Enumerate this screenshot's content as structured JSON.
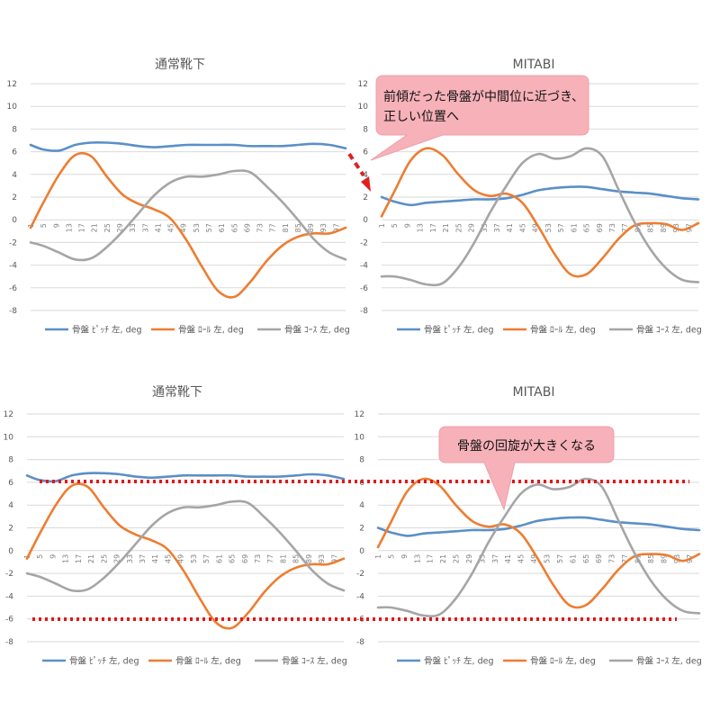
{
  "colors": {
    "pitch": "#5b8fc7",
    "roll": "#ed7d31",
    "yaw": "#a5a5a5",
    "callout_fill": "#f6b1b9",
    "callout_stroke": "#eea0aa",
    "arrow": "#e02020",
    "dotted": "#e01919"
  },
  "legend_labels": {
    "pitch": "骨盤 ﾋﾟｯﾁ 左, deg",
    "roll": "骨盤 ﾛｰﾙ 左, deg",
    "yaw": "骨盤 ｺｰｽ 左, deg"
  },
  "callouts": {
    "top": [
      "前傾だった骨盤が中間位に近づき、",
      "正しい位置へ"
    ],
    "bottom": [
      "骨盤の回旋が大きくなる"
    ]
  },
  "chart_data": [
    {
      "type": "line",
      "title": "通常靴下",
      "ylim": [
        -8,
        12
      ],
      "yticks": [
        "12",
        "10",
        "8",
        "6",
        "4",
        "2",
        "0",
        "-2",
        "-4",
        "-6",
        "-8"
      ],
      "categories": [
        "1",
        "5",
        "9",
        "13",
        "17",
        "21",
        "25",
        "29",
        "33",
        "37",
        "41",
        "45",
        "49",
        "53",
        "57",
        "61",
        "65",
        "69",
        "73",
        "77",
        "81",
        "85",
        "89",
        "93",
        "97"
      ],
      "x_range": [
        1,
        100
      ],
      "series": [
        {
          "name": "骨盤 ﾋﾟｯﾁ 左, deg",
          "key": "pitch",
          "x": [
            1,
            5,
            10,
            15,
            20,
            25,
            30,
            35,
            40,
            45,
            50,
            55,
            60,
            65,
            70,
            75,
            80,
            85,
            90,
            95,
            100
          ],
          "values": [
            6.6,
            6.2,
            6.1,
            6.6,
            6.8,
            6.8,
            6.7,
            6.5,
            6.4,
            6.5,
            6.6,
            6.6,
            6.6,
            6.6,
            6.5,
            6.5,
            6.5,
            6.6,
            6.7,
            6.6,
            6.3
          ]
        },
        {
          "name": "骨盤 ﾛｰﾙ 左, deg",
          "key": "roll",
          "x": [
            1,
            5,
            10,
            15,
            20,
            25,
            30,
            35,
            40,
            45,
            50,
            55,
            60,
            65,
            70,
            75,
            80,
            85,
            90,
            95,
            100
          ],
          "values": [
            -0.7,
            1.5,
            4.0,
            5.7,
            5.6,
            3.8,
            2.2,
            1.4,
            0.9,
            0.1,
            -1.8,
            -4.2,
            -6.3,
            -6.8,
            -5.5,
            -3.7,
            -2.3,
            -1.5,
            -1.2,
            -1.2,
            -0.7
          ]
        },
        {
          "name": "骨盤 ｺｰｽ 左, deg",
          "key": "yaw",
          "x": [
            1,
            5,
            10,
            15,
            20,
            25,
            30,
            35,
            40,
            45,
            50,
            55,
            60,
            65,
            70,
            75,
            80,
            85,
            90,
            95,
            100
          ],
          "values": [
            -2.0,
            -2.3,
            -2.9,
            -3.5,
            -3.4,
            -2.4,
            -1.0,
            0.6,
            2.2,
            3.3,
            3.8,
            3.8,
            4.0,
            4.3,
            4.2,
            3.0,
            1.6,
            0.0,
            -1.7,
            -2.9,
            -3.5
          ]
        }
      ]
    },
    {
      "type": "line",
      "title": "MITABI",
      "ylim": [
        -8,
        12
      ],
      "yticks": [
        "12",
        "10",
        "8",
        "6",
        "4",
        "2",
        "0",
        "-2",
        "-4",
        "-6",
        "-8"
      ],
      "categories": [
        "1",
        "5",
        "9",
        "13",
        "17",
        "21",
        "25",
        "29",
        "33",
        "37",
        "41",
        "45",
        "49",
        "53",
        "57",
        "61",
        "65",
        "69",
        "73",
        "77",
        "81",
        "85",
        "89",
        "93",
        "97"
      ],
      "x_range": [
        1,
        100
      ],
      "series": [
        {
          "name": "骨盤 ﾋﾟｯﾁ 左, deg",
          "key": "pitch",
          "x": [
            1,
            5,
            10,
            15,
            20,
            25,
            30,
            35,
            40,
            45,
            50,
            55,
            60,
            65,
            70,
            75,
            80,
            85,
            90,
            95,
            100
          ],
          "values": [
            2.0,
            1.6,
            1.3,
            1.5,
            1.6,
            1.7,
            1.8,
            1.8,
            1.9,
            2.2,
            2.6,
            2.8,
            2.9,
            2.9,
            2.7,
            2.5,
            2.4,
            2.3,
            2.1,
            1.9,
            1.8
          ]
        },
        {
          "name": "骨盤 ﾛｰﾙ 左, deg",
          "key": "roll",
          "x": [
            1,
            5,
            10,
            15,
            20,
            25,
            30,
            35,
            40,
            45,
            50,
            55,
            60,
            65,
            70,
            75,
            80,
            85,
            90,
            95,
            100
          ],
          "values": [
            0.3,
            2.5,
            5.2,
            6.3,
            5.7,
            4.0,
            2.6,
            2.1,
            2.3,
            1.5,
            -0.6,
            -3.0,
            -4.8,
            -4.8,
            -3.4,
            -1.7,
            -0.5,
            -0.3,
            -0.4,
            -0.9,
            -0.3
          ]
        },
        {
          "name": "骨盤 ｺｰｽ 左, deg",
          "key": "yaw",
          "x": [
            1,
            5,
            10,
            15,
            20,
            25,
            30,
            35,
            40,
            45,
            50,
            55,
            60,
            65,
            70,
            75,
            80,
            85,
            90,
            95,
            100
          ],
          "values": [
            -5.0,
            -5.0,
            -5.3,
            -5.7,
            -5.6,
            -4.2,
            -2.0,
            0.7,
            3.0,
            5.0,
            5.8,
            5.4,
            5.6,
            6.3,
            5.6,
            2.7,
            -0.2,
            -2.6,
            -4.3,
            -5.3,
            -5.5
          ]
        }
      ]
    },
    {
      "type": "line",
      "title": "通常靴下",
      "ylim": [
        -8,
        12
      ],
      "yticks": [
        "12",
        "10",
        "8",
        "6",
        "4",
        "2",
        "0",
        "-2",
        "-4",
        "-6",
        "-8"
      ],
      "categories": [
        "1",
        "5",
        "9",
        "13",
        "17",
        "21",
        "25",
        "29",
        "33",
        "37",
        "41",
        "45",
        "49",
        "53",
        "57",
        "61",
        "65",
        "69",
        "73",
        "77",
        "81",
        "85",
        "89",
        "93",
        "97"
      ],
      "x_range": [
        1,
        100
      ],
      "series": [
        {
          "name": "骨盤 ﾋﾟｯﾁ 左, deg",
          "key": "pitch",
          "x": [
            1,
            5,
            10,
            15,
            20,
            25,
            30,
            35,
            40,
            45,
            50,
            55,
            60,
            65,
            70,
            75,
            80,
            85,
            90,
            95,
            100
          ],
          "values": [
            6.6,
            6.2,
            6.1,
            6.6,
            6.8,
            6.8,
            6.7,
            6.5,
            6.4,
            6.5,
            6.6,
            6.6,
            6.6,
            6.6,
            6.5,
            6.5,
            6.5,
            6.6,
            6.7,
            6.6,
            6.3
          ]
        },
        {
          "name": "骨盤 ﾛｰﾙ 左, deg",
          "key": "roll",
          "x": [
            1,
            5,
            10,
            15,
            20,
            25,
            30,
            35,
            40,
            45,
            50,
            55,
            60,
            65,
            70,
            75,
            80,
            85,
            90,
            95,
            100
          ],
          "values": [
            -0.7,
            1.5,
            4.0,
            5.7,
            5.6,
            3.8,
            2.2,
            1.4,
            0.9,
            0.1,
            -1.8,
            -4.2,
            -6.3,
            -6.8,
            -5.5,
            -3.7,
            -2.3,
            -1.5,
            -1.2,
            -1.2,
            -0.7
          ]
        },
        {
          "name": "骨盤 ｺｰｽ 左, deg",
          "key": "yaw",
          "x": [
            1,
            5,
            10,
            15,
            20,
            25,
            30,
            35,
            40,
            45,
            50,
            55,
            60,
            65,
            70,
            75,
            80,
            85,
            90,
            95,
            100
          ],
          "values": [
            -2.0,
            -2.3,
            -2.9,
            -3.5,
            -3.4,
            -2.4,
            -1.0,
            0.6,
            2.2,
            3.3,
            3.8,
            3.8,
            4.0,
            4.3,
            4.2,
            3.0,
            1.6,
            0.0,
            -1.7,
            -2.9,
            -3.5
          ]
        }
      ]
    },
    {
      "type": "line",
      "title": "MITABI",
      "ylim": [
        -8,
        12
      ],
      "yticks": [
        "12",
        "10",
        "8",
        "6",
        "4",
        "2",
        "0",
        "-2",
        "-4",
        "-6",
        "-8"
      ],
      "categories": [
        "1",
        "5",
        "9",
        "13",
        "17",
        "21",
        "25",
        "29",
        "33",
        "37",
        "41",
        "45",
        "49",
        "53",
        "57",
        "61",
        "65",
        "69",
        "73",
        "77",
        "81",
        "85",
        "89",
        "93",
        "97"
      ],
      "x_range": [
        1,
        100
      ],
      "series": [
        {
          "name": "骨盤 ﾋﾟｯﾁ 左, deg",
          "key": "pitch",
          "x": [
            1,
            5,
            10,
            15,
            20,
            25,
            30,
            35,
            40,
            45,
            50,
            55,
            60,
            65,
            70,
            75,
            80,
            85,
            90,
            95,
            100
          ],
          "values": [
            2.0,
            1.6,
            1.3,
            1.5,
            1.6,
            1.7,
            1.8,
            1.8,
            1.9,
            2.2,
            2.6,
            2.8,
            2.9,
            2.9,
            2.7,
            2.5,
            2.4,
            2.3,
            2.1,
            1.9,
            1.8
          ]
        },
        {
          "name": "骨盤 ﾛｰﾙ 左, deg",
          "key": "roll",
          "x": [
            1,
            5,
            10,
            15,
            20,
            25,
            30,
            35,
            40,
            45,
            50,
            55,
            60,
            65,
            70,
            75,
            80,
            85,
            90,
            95,
            100
          ],
          "values": [
            0.3,
            2.5,
            5.2,
            6.3,
            5.7,
            4.0,
            2.6,
            2.1,
            2.3,
            1.5,
            -0.6,
            -3.0,
            -4.8,
            -4.8,
            -3.4,
            -1.7,
            -0.5,
            -0.3,
            -0.4,
            -0.9,
            -0.3
          ]
        },
        {
          "name": "骨盤 ｺｰｽ 左, deg",
          "key": "yaw",
          "x": [
            1,
            5,
            10,
            15,
            20,
            25,
            30,
            35,
            40,
            45,
            50,
            55,
            60,
            65,
            70,
            75,
            80,
            85,
            90,
            95,
            100
          ],
          "values": [
            -5.0,
            -5.0,
            -5.3,
            -5.7,
            -5.6,
            -4.2,
            -2.0,
            0.7,
            3.0,
            5.0,
            5.8,
            5.4,
            5.6,
            6.3,
            5.6,
            2.7,
            -0.2,
            -2.6,
            -4.3,
            -5.3,
            -5.5
          ]
        }
      ]
    }
  ]
}
